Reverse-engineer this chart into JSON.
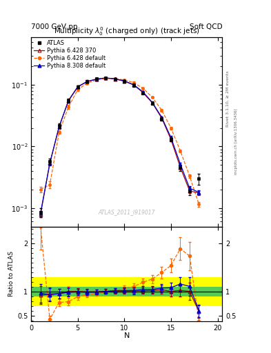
{
  "title_main": "Multiplicity $\\lambda_0^0$ (charged only) (track jets)",
  "header_left": "7000 GeV pp",
  "header_right": "Soft QCD",
  "watermark": "ATLAS_2011_I919017",
  "right_label1": "Rivet 3.1.10, ≥ 2M events",
  "right_label2": "mcplots.cern.ch [arXiv:1306.3436]",
  "atlas_N": [
    1,
    2,
    3,
    4,
    5,
    6,
    7,
    8,
    9,
    10,
    11,
    12,
    13,
    14,
    15,
    16,
    17,
    18
  ],
  "atlas_val": [
    0.00085,
    0.0057,
    0.022,
    0.056,
    0.094,
    0.115,
    0.126,
    0.13,
    0.124,
    0.114,
    0.099,
    0.074,
    0.05,
    0.028,
    0.013,
    0.0045,
    0.0019,
    0.003
  ],
  "atlas_err": [
    0.00015,
    0.0007,
    0.002,
    0.004,
    0.005,
    0.005,
    0.005,
    0.005,
    0.005,
    0.005,
    0.005,
    0.004,
    0.003,
    0.002,
    0.001,
    0.0005,
    0.0003,
    0.0006
  ],
  "py6370_N": [
    1,
    2,
    3,
    4,
    5,
    6,
    7,
    8,
    9,
    10,
    11,
    12,
    13,
    14,
    15,
    16,
    17,
    18
  ],
  "py6370_val": [
    0.00078,
    0.0054,
    0.021,
    0.056,
    0.094,
    0.114,
    0.125,
    0.13,
    0.125,
    0.115,
    0.1,
    0.075,
    0.051,
    0.029,
    0.013,
    0.0046,
    0.0019,
    0.00175
  ],
  "py6370_err": [
    8e-05,
    0.0004,
    0.001,
    0.003,
    0.004,
    0.004,
    0.004,
    0.004,
    0.004,
    0.004,
    0.004,
    0.003,
    0.002,
    0.001,
    0.0008,
    0.0003,
    0.00015,
    0.00015
  ],
  "py6def_N": [
    1,
    2,
    3,
    4,
    5,
    6,
    7,
    8,
    9,
    10,
    11,
    12,
    13,
    14,
    15,
    16,
    17,
    18
  ],
  "py6def_val": [
    0.002,
    0.0024,
    0.017,
    0.044,
    0.084,
    0.107,
    0.12,
    0.128,
    0.126,
    0.121,
    0.109,
    0.088,
    0.063,
    0.039,
    0.02,
    0.0085,
    0.0033,
    0.00115
  ],
  "py6def_err": [
    0.0002,
    0.0003,
    0.001,
    0.003,
    0.004,
    0.004,
    0.004,
    0.004,
    0.004,
    0.004,
    0.004,
    0.003,
    0.002,
    0.002,
    0.001,
    0.0005,
    0.0002,
    0.0001
  ],
  "py8def_N": [
    1,
    2,
    3,
    4,
    5,
    6,
    7,
    8,
    9,
    10,
    11,
    12,
    13,
    14,
    15,
    16,
    17,
    18
  ],
  "py8def_val": [
    0.00082,
    0.0053,
    0.021,
    0.055,
    0.093,
    0.113,
    0.124,
    0.13,
    0.126,
    0.116,
    0.101,
    0.077,
    0.052,
    0.03,
    0.014,
    0.0052,
    0.0021,
    0.0018
  ],
  "py8def_err": [
    8e-05,
    0.0004,
    0.001,
    0.003,
    0.004,
    0.004,
    0.004,
    0.004,
    0.004,
    0.004,
    0.004,
    0.003,
    0.002,
    0.001,
    0.0008,
    0.0003,
    0.00015,
    0.00015
  ],
  "color_atlas": "#000000",
  "color_py6370": "#aa0000",
  "color_py6def": "#ff6600",
  "color_py8def": "#0000cc",
  "band_yellow": 0.3,
  "band_green": 0.1,
  "xlim": [
    0,
    20.5
  ],
  "ylim_main": [
    0.0005,
    0.6
  ],
  "ylim_ratio": [
    0.38,
    2.35
  ],
  "xticks": [
    0,
    5,
    10,
    15,
    20
  ]
}
